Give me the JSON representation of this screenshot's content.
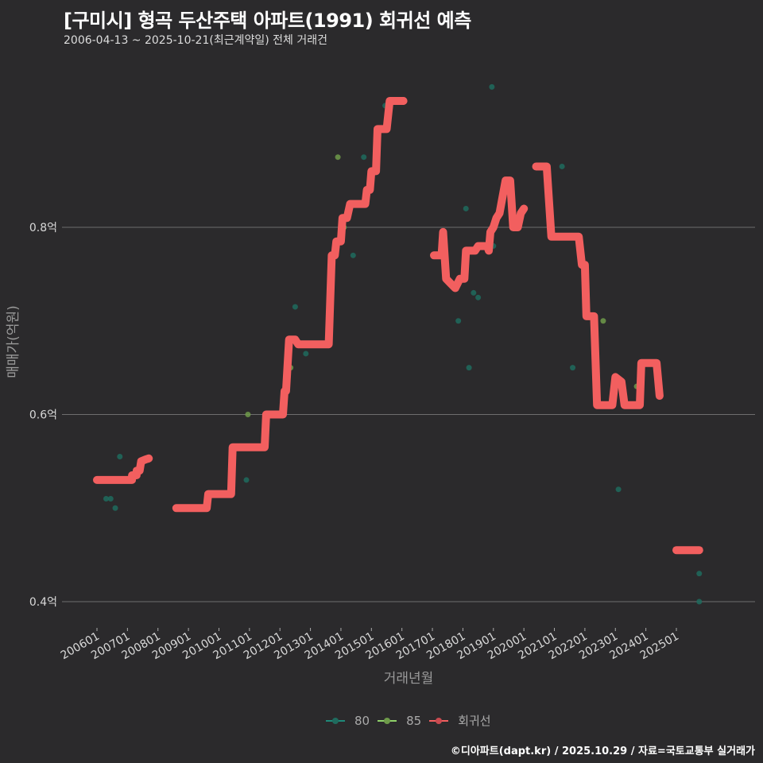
{
  "header": {
    "title": "[구미시] 형곡 두산주택 아파트(1991) 회귀선 예측",
    "subtitle": "2006-04-13 ~ 2025-10-21(최근계약일) 전체 거래건"
  },
  "caption": "©디아파트(dapt.kr) / 2025.10.29 / 자료=국토교통부 실거래가",
  "legend": [
    {
      "label": "80",
      "color": "#1f8a7a"
    },
    {
      "label": "85",
      "color": "#8fd16a"
    },
    {
      "label": "회귀선",
      "color": "#f25f5f"
    }
  ],
  "colors": {
    "background": "#2b2a2c",
    "grid": "#6e6e6e",
    "regression": "#f25f5f",
    "area80": "#1f6b5e",
    "area85": "#6e9a4a"
  },
  "chart_data": {
    "type": "scatter",
    "title": "[구미시] 형곡 두산주택 아파트(1991) 회귀선 예측",
    "subtitle": "2006-04-13 ~ 2025-10-21(최근계약일) 전체 거래건",
    "xlabel": "거래년월",
    "ylabel": "매매가(억원)",
    "x_ticks": [
      "200601",
      "200701",
      "200801",
      "200901",
      "201001",
      "201101",
      "201201",
      "201301",
      "201401",
      "201501",
      "201601",
      "201701",
      "201801",
      "201901",
      "202001",
      "202101",
      "202201",
      "202301",
      "202401",
      "202501"
    ],
    "y_ticks": [
      "0.4억",
      "0.6억",
      "0.8억"
    ],
    "y_tick_values": [
      0.4,
      0.6,
      0.8
    ],
    "ylim": [
      0.37,
      0.96
    ],
    "xlim": [
      2005.4,
      2026.2
    ],
    "grid": "horizontal",
    "legend_position": "bottom",
    "series": [
      {
        "name": "80",
        "type": "scatter",
        "color": "#1f6b5e",
        "points": [
          [
            2006.3,
            0.51
          ],
          [
            2006.45,
            0.51
          ],
          [
            2006.6,
            0.5
          ],
          [
            2006.75,
            0.555
          ],
          [
            2010.9,
            0.53
          ],
          [
            2012.85,
            0.665
          ],
          [
            2012.5,
            0.715
          ],
          [
            2014.1,
            0.8
          ],
          [
            2014.4,
            0.77
          ],
          [
            2014.75,
            0.875
          ],
          [
            2015.45,
            0.93
          ],
          [
            2017.85,
            0.7
          ],
          [
            2018.1,
            0.82
          ],
          [
            2018.2,
            0.65
          ],
          [
            2018.35,
            0.73
          ],
          [
            2018.5,
            0.725
          ],
          [
            2019.0,
            0.78
          ],
          [
            2018.95,
            0.95
          ],
          [
            2021.25,
            0.865
          ],
          [
            2021.6,
            0.65
          ],
          [
            2023.1,
            0.52
          ],
          [
            2025.75,
            0.43
          ],
          [
            2025.75,
            0.4
          ]
        ]
      },
      {
        "name": "85",
        "type": "scatter",
        "color": "#6e9a4a",
        "points": [
          [
            2010.95,
            0.6
          ],
          [
            2012.35,
            0.65
          ],
          [
            2013.9,
            0.875
          ],
          [
            2014.1,
            0.8
          ],
          [
            2022.6,
            0.7
          ],
          [
            2023.7,
            0.63
          ]
        ]
      },
      {
        "name": "회귀선",
        "type": "line",
        "color": "#f25f5f",
        "segments": [
          [
            [
              2006.0,
              0.53
            ],
            [
              2007.15,
              0.53
            ],
            [
              2007.15,
              0.535
            ],
            [
              2007.3,
              0.535
            ],
            [
              2007.3,
              0.54
            ],
            [
              2007.4,
              0.54
            ],
            [
              2007.45,
              0.55
            ],
            [
              2007.6,
              0.552
            ],
            [
              2007.7,
              0.553
            ]
          ],
          [
            [
              2008.6,
              0.5
            ],
            [
              2009.6,
              0.5
            ],
            [
              2009.65,
              0.515
            ],
            [
              2010.4,
              0.515
            ],
            [
              2010.45,
              0.565
            ],
            [
              2011.5,
              0.565
            ],
            [
              2011.55,
              0.6
            ],
            [
              2012.1,
              0.6
            ],
            [
              2012.15,
              0.625
            ],
            [
              2012.2,
              0.625
            ],
            [
              2012.3,
              0.68
            ],
            [
              2012.5,
              0.68
            ],
            [
              2012.6,
              0.675
            ],
            [
              2013.6,
              0.675
            ],
            [
              2013.7,
              0.77
            ],
            [
              2013.8,
              0.77
            ],
            [
              2013.85,
              0.785
            ],
            [
              2014.0,
              0.785
            ],
            [
              2014.05,
              0.81
            ],
            [
              2014.2,
              0.81
            ],
            [
              2014.3,
              0.825
            ],
            [
              2014.8,
              0.825
            ],
            [
              2014.85,
              0.84
            ],
            [
              2014.95,
              0.84
            ],
            [
              2015.0,
              0.86
            ],
            [
              2015.15,
              0.86
            ],
            [
              2015.2,
              0.905
            ],
            [
              2015.5,
              0.905
            ],
            [
              2015.6,
              0.935
            ],
            [
              2016.05,
              0.935
            ]
          ],
          [
            [
              2017.05,
              0.77
            ],
            [
              2017.3,
              0.77
            ],
            [
              2017.35,
              0.795
            ],
            [
              2017.45,
              0.745
            ],
            [
              2017.6,
              0.74
            ],
            [
              2017.75,
              0.735
            ],
            [
              2017.9,
              0.745
            ],
            [
              2018.05,
              0.745
            ],
            [
              2018.1,
              0.775
            ],
            [
              2018.4,
              0.775
            ],
            [
              2018.5,
              0.78
            ],
            [
              2018.8,
              0.78
            ],
            [
              2018.85,
              0.775
            ],
            [
              2018.9,
              0.795
            ],
            [
              2019.0,
              0.8
            ],
            [
              2019.1,
              0.81
            ],
            [
              2019.2,
              0.815
            ],
            [
              2019.4,
              0.85
            ],
            [
              2019.55,
              0.85
            ],
            [
              2019.65,
              0.8
            ],
            [
              2019.8,
              0.8
            ],
            [
              2019.9,
              0.815
            ],
            [
              2020.0,
              0.82
            ]
          ],
          [
            [
              2020.4,
              0.865
            ],
            [
              2020.75,
              0.865
            ],
            [
              2020.9,
              0.79
            ],
            [
              2021.8,
              0.79
            ],
            [
              2021.9,
              0.76
            ],
            [
              2022.0,
              0.76
            ],
            [
              2022.05,
              0.705
            ],
            [
              2022.3,
              0.705
            ],
            [
              2022.4,
              0.61
            ],
            [
              2022.9,
              0.61
            ],
            [
              2023.0,
              0.64
            ],
            [
              2023.2,
              0.635
            ],
            [
              2023.3,
              0.61
            ],
            [
              2023.8,
              0.61
            ],
            [
              2023.85,
              0.655
            ],
            [
              2024.35,
              0.655
            ],
            [
              2024.45,
              0.62
            ]
          ],
          [
            [
              2025.0,
              0.455
            ],
            [
              2025.75,
              0.455
            ]
          ]
        ]
      }
    ]
  }
}
